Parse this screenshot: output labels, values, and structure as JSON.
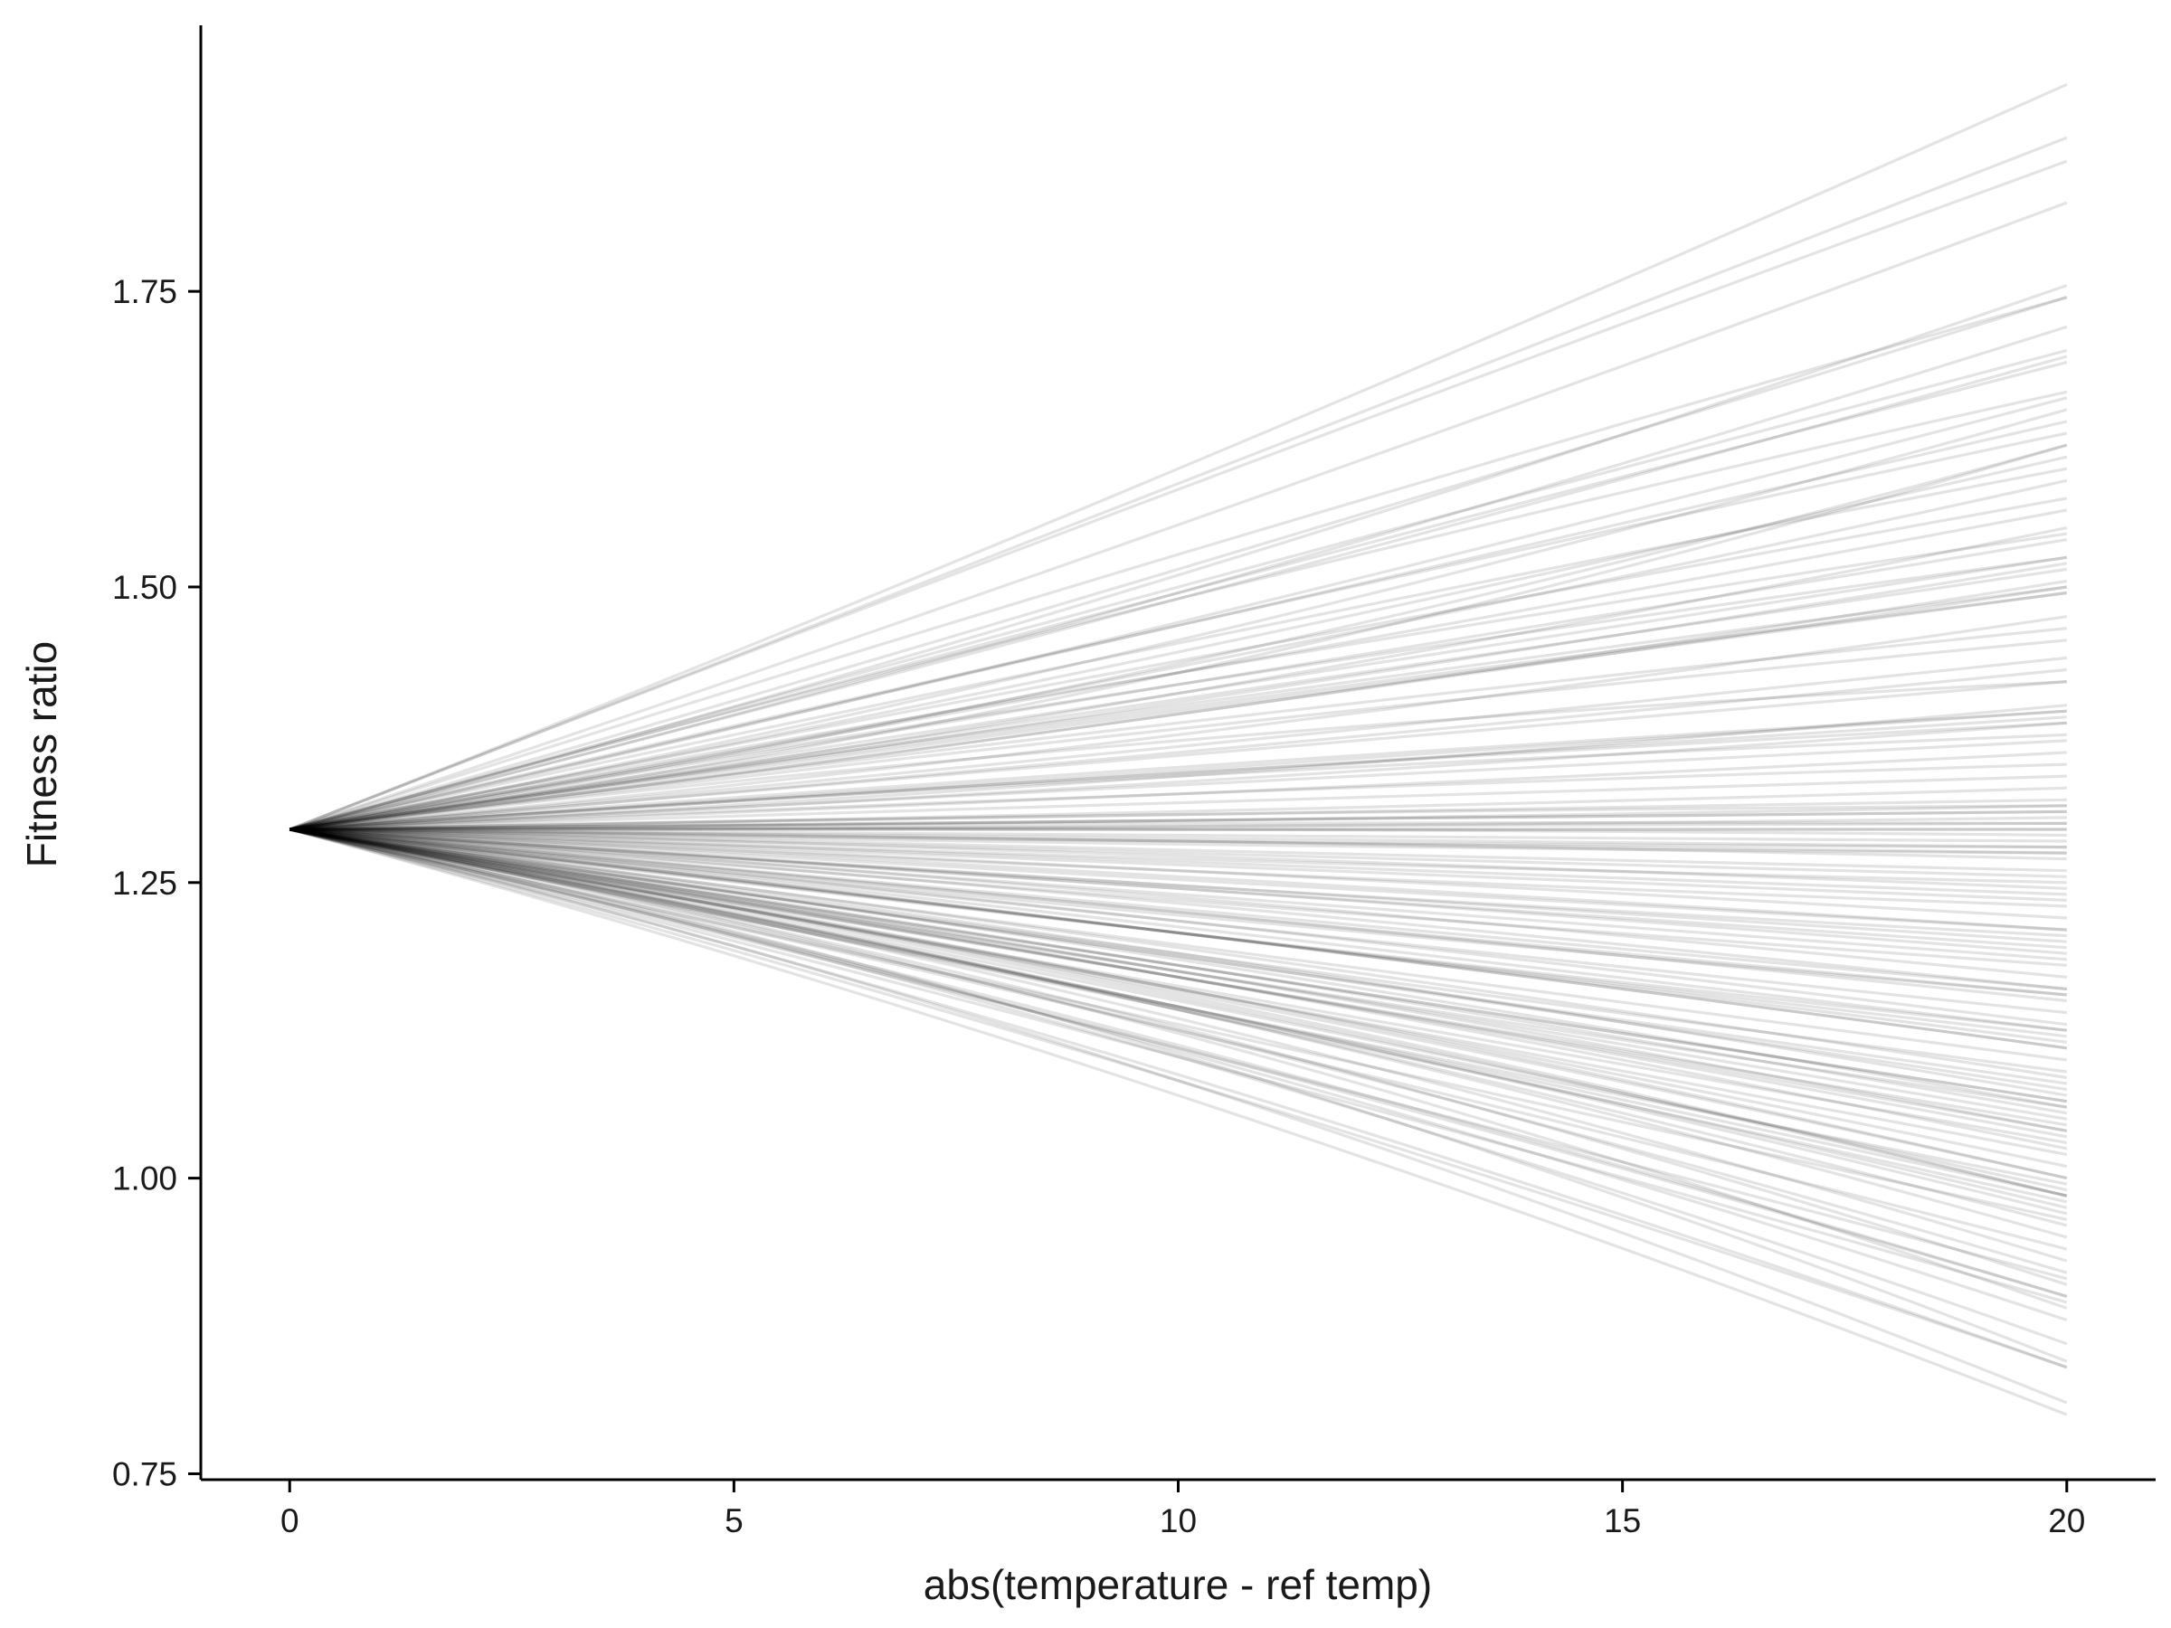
{
  "chart_data": {
    "type": "line",
    "title": "",
    "xlabel": "abs(temperature - ref temp)",
    "ylabel": "Fitness ratio",
    "xlim": [
      -1,
      21
    ],
    "ylim": [
      0.745,
      1.975
    ],
    "x_ticks": [
      0,
      5,
      10,
      15,
      20
    ],
    "x_tick_labels": [
      "0",
      "5",
      "10",
      "15",
      "20"
    ],
    "y_ticks": [
      0.75,
      1.0,
      1.25,
      1.5,
      1.75
    ],
    "y_tick_labels": [
      "0.75",
      "1.00",
      "1.25",
      "1.50",
      "1.75"
    ],
    "grid": false,
    "legend": "none",
    "line_color": "#000000",
    "line_opacity": 0.11,
    "x": [
      0,
      20
    ],
    "origin_value": 1.295,
    "series_count": 150,
    "series_end_values": [
      1.925,
      1.88,
      1.86,
      1.825,
      1.755,
      1.745,
      1.72,
      1.7,
      1.695,
      1.665,
      1.65,
      1.64,
      1.62,
      1.61,
      1.6,
      1.59,
      1.575,
      1.55,
      1.54,
      1.525,
      1.52,
      1.515,
      1.505,
      1.5,
      1.495,
      1.475,
      1.455,
      1.44,
      1.42,
      1.4,
      1.395,
      1.39,
      1.385,
      1.375,
      1.37,
      1.36,
      1.35,
      1.34,
      1.33,
      1.32,
      1.315,
      1.31,
      1.305,
      1.3,
      1.295,
      1.29,
      1.285,
      1.28,
      1.275,
      1.27,
      1.26,
      1.25,
      1.245,
      1.24,
      1.235,
      1.23,
      1.22,
      1.21,
      1.205,
      1.2,
      1.19,
      1.185,
      1.18,
      1.17,
      1.16,
      1.155,
      1.15,
      1.14,
      1.13,
      1.125,
      1.12,
      1.115,
      1.11,
      1.1,
      1.09,
      1.085,
      1.08,
      1.075,
      1.07,
      1.065,
      1.06,
      1.055,
      1.05,
      1.045,
      1.04,
      1.035,
      1.03,
      1.025,
      1.02,
      1.01,
      1.0,
      0.995,
      0.99,
      0.985,
      0.98,
      0.975,
      0.97,
      0.965,
      0.96,
      0.95,
      0.94,
      0.93,
      0.92,
      0.915,
      0.91,
      0.9,
      0.89,
      0.88,
      0.86,
      0.845,
      0.84,
      0.81,
      0.8,
      1.745,
      1.69,
      1.66,
      1.63,
      1.565,
      1.545,
      1.525,
      1.5,
      1.495,
      1.465,
      1.43,
      1.395,
      1.385,
      1.315,
      1.31,
      1.3,
      1.295,
      1.28,
      1.275,
      1.21,
      1.195,
      1.16,
      1.155,
      1.125,
      1.11,
      1.065,
      1.06,
      1.04,
      1.0,
      0.985,
      0.985,
      0.9,
      0.895,
      0.84,
      1.62,
      1.42,
      1.255
    ],
    "series_curvature": [
      -0.04,
      0.0,
      0.02,
      -0.03,
      -0.06,
      0.03,
      -0.05,
      0.01,
      -0.02,
      0.04,
      -0.07,
      0.0,
      -0.09,
      -0.03,
      0.02,
      -0.04,
      0.01,
      -0.05,
      0.0,
      0.03,
      -0.02,
      0.0,
      -0.03,
      0.01,
      0.0,
      -0.04,
      0.02,
      -0.01,
      0.0,
      -0.03,
      0.01,
      0.0,
      -0.02,
      0.02,
      0.0,
      -0.01,
      0.01,
      0.0,
      -0.01,
      0.0,
      0.01,
      0.0,
      -0.01,
      0.0,
      0.0,
      0.01,
      0.0,
      -0.01,
      0.0,
      0.01,
      0.0,
      -0.01,
      0.01,
      0.0,
      0.0,
      -0.01,
      0.01,
      0.0,
      -0.01,
      0.0,
      0.01,
      0.0,
      -0.01,
      0.02,
      0.0,
      -0.01,
      0.01,
      0.0,
      0.02,
      -0.01,
      0.0,
      0.01,
      0.02,
      0.0,
      -0.01,
      0.02,
      0.0,
      0.01,
      0.03,
      0.0,
      -0.01,
      0.02,
      0.01,
      0.0,
      0.03,
      0.02,
      0.0,
      0.04,
      0.01,
      0.03,
      0.05,
      0.0,
      0.03,
      0.06,
      0.02,
      0.04,
      0.05,
      0.0,
      0.06,
      0.08,
      0.03,
      0.09,
      0.07,
      0.02,
      0.1,
      0.05,
      0.12,
      0.08,
      0.1,
      0.14,
      0.06,
      0.12,
      0.09,
      -0.02,
      0.01,
      -0.03,
      0.02,
      -0.01,
      0.03,
      0.0,
      -0.02,
      0.01,
      0.02,
      -0.01,
      0.0,
      0.01,
      -0.01,
      0.0,
      0.01,
      0.0,
      0.0,
      -0.01,
      0.01,
      0.0,
      0.02,
      0.0,
      0.01,
      0.02,
      0.0,
      0.03,
      0.01,
      0.04,
      0.02,
      0.05,
      0.06,
      0.03,
      0.08,
      -0.12,
      0.05,
      0.0
    ]
  }
}
